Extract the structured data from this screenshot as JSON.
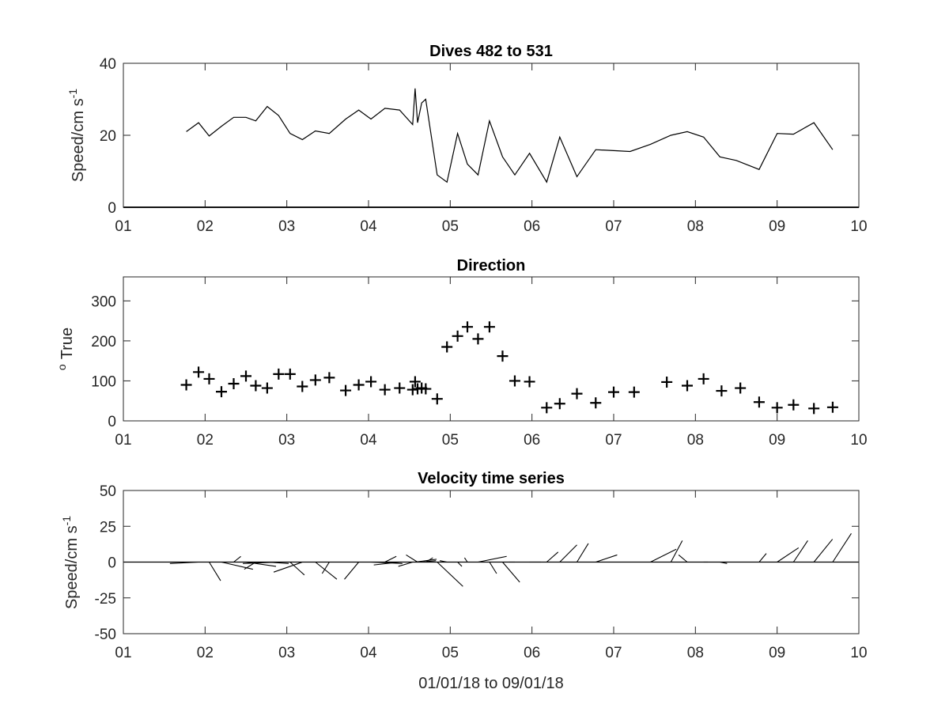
{
  "chart_data": [
    {
      "type": "line",
      "title": "Dives 482 to 531",
      "ylabel": "Speed/cm s",
      "ylabel_sup": "-1",
      "xlim": [
        1,
        10
      ],
      "ylim": [
        0,
        40
      ],
      "xtick_labels": [
        "01",
        "02",
        "03",
        "04",
        "05",
        "06",
        "07",
        "08",
        "09",
        "10"
      ],
      "yticks": [
        0,
        20,
        40
      ],
      "ytick_labels": [
        "0",
        "20",
        "40"
      ],
      "x": [
        1.77,
        1.92,
        2.05,
        2.2,
        2.35,
        2.5,
        2.62,
        2.76,
        2.9,
        3.04,
        3.19,
        3.35,
        3.52,
        3.72,
        3.88,
        4.03,
        4.2,
        4.38,
        4.54,
        4.57,
        4.6,
        4.65,
        4.7,
        4.84,
        4.96,
        5.09,
        5.21,
        5.34,
        5.48,
        5.64,
        5.79,
        5.97,
        6.18,
        6.34,
        6.55,
        6.78,
        7.2,
        7.45,
        7.7,
        7.9,
        8.1,
        8.3,
        8.5,
        8.78,
        9.0,
        9.2,
        9.45,
        9.68
      ],
      "y": [
        21,
        23.5,
        19.8,
        22.5,
        25,
        25,
        24,
        28,
        25.5,
        20.5,
        18.8,
        21.2,
        20.5,
        24.5,
        27,
        24.5,
        27.5,
        27,
        23,
        33,
        23.5,
        29,
        30,
        9,
        7,
        20.5,
        12,
        9,
        24,
        14,
        9,
        15,
        7,
        19.5,
        8.5,
        16,
        15.5,
        17.5,
        20,
        21,
        19.5,
        14,
        13,
        10.5,
        20.5,
        20.3,
        23.5,
        16
      ]
    },
    {
      "type": "scatter",
      "title": "Direction",
      "ylabel": "True",
      "ylabel_degree": "o",
      "xlim": [
        1,
        10
      ],
      "ylim": [
        0,
        360
      ],
      "xtick_labels": [
        "01",
        "02",
        "03",
        "04",
        "05",
        "06",
        "07",
        "08",
        "09",
        "10"
      ],
      "yticks": [
        0,
        100,
        200,
        300
      ],
      "ytick_labels": [
        "0",
        "100",
        "200",
        "300"
      ],
      "x": [
        1.77,
        1.92,
        2.05,
        2.2,
        2.35,
        2.5,
        2.62,
        2.76,
        2.9,
        3.04,
        3.19,
        3.35,
        3.52,
        3.72,
        3.88,
        4.03,
        4.2,
        4.38,
        4.54,
        4.57,
        4.6,
        4.65,
        4.7,
        4.84,
        4.96,
        5.09,
        5.21,
        5.34,
        5.48,
        5.64,
        5.79,
        5.97,
        6.18,
        6.34,
        6.55,
        6.78,
        7.0,
        7.25,
        7.65,
        7.9,
        8.1,
        8.32,
        8.55,
        8.78,
        9.0,
        9.2,
        9.45,
        9.68
      ],
      "y": [
        90,
        122,
        105,
        73,
        93,
        112,
        88,
        82,
        117,
        117,
        86,
        102,
        108,
        76,
        90,
        98,
        78,
        82,
        78,
        98,
        80,
        82,
        80,
        55,
        185,
        212,
        235,
        205,
        235,
        162,
        100,
        98,
        33,
        43,
        68,
        45,
        72,
        72,
        97,
        88,
        105,
        75,
        82,
        47,
        33,
        40,
        31,
        34
      ]
    },
    {
      "type": "line",
      "title": "Velocity time series",
      "ylabel": "Speed/cm s",
      "ylabel_sup": "-1",
      "xlabel": "01/01/18 to 09/01/18",
      "xlim": [
        1,
        10
      ],
      "ylim": [
        -50,
        50
      ],
      "xtick_labels": [
        "01",
        "02",
        "03",
        "04",
        "05",
        "06",
        "07",
        "08",
        "09",
        "10"
      ],
      "yticks": [
        -50,
        -25,
        0,
        25,
        50
      ],
      "ytick_labels": [
        "-50",
        "-25",
        "0",
        "25",
        "50"
      ],
      "x": [
        1.92,
        2.05,
        2.2,
        2.35,
        2.5,
        2.62,
        2.76,
        2.9,
        3.04,
        3.19,
        3.35,
        3.52,
        3.72,
        3.88,
        4.03,
        4.2,
        4.38,
        4.54,
        4.57,
        4.6,
        4.65,
        4.7,
        4.84,
        4.96,
        5.09,
        5.21,
        5.34,
        5.48,
        5.64,
        5.79,
        5.97,
        6.18,
        6.34,
        6.55,
        6.78,
        7.2,
        7.45,
        7.7,
        7.9,
        8.1,
        8.3,
        8.5,
        8.78,
        9.0,
        9.2,
        9.45,
        9.68
      ],
      "series": [
        {
          "values_u": [
            -20,
            8,
            22,
            5,
            21,
            -8,
            15,
            -25,
            10,
            -20,
            15,
            -5,
            20,
            -10,
            22,
            8,
            -18,
            -10,
            15,
            -8,
            10,
            5,
            18,
            -5,
            3,
            -2,
            20,
            5,
            12,
            -4,
            8,
            8,
            12,
            8,
            15,
            12,
            18,
            8,
            -6,
            3,
            5,
            10,
            5,
            15,
            10,
            13,
            13
          ],
          "values_v": [
            -1,
            -13,
            -5,
            4,
            -3,
            -5,
            -1,
            -1,
            -9,
            -7,
            -12,
            -8,
            0,
            -12,
            -1,
            4,
            -2,
            -3,
            2,
            5,
            1,
            3,
            -17,
            1,
            -3,
            3,
            4,
            -8,
            -14,
            0,
            0,
            7,
            12,
            13,
            5,
            0,
            9,
            15,
            5,
            0,
            -1,
            0,
            6,
            10,
            15,
            16,
            20
          ]
        }
      ]
    }
  ]
}
